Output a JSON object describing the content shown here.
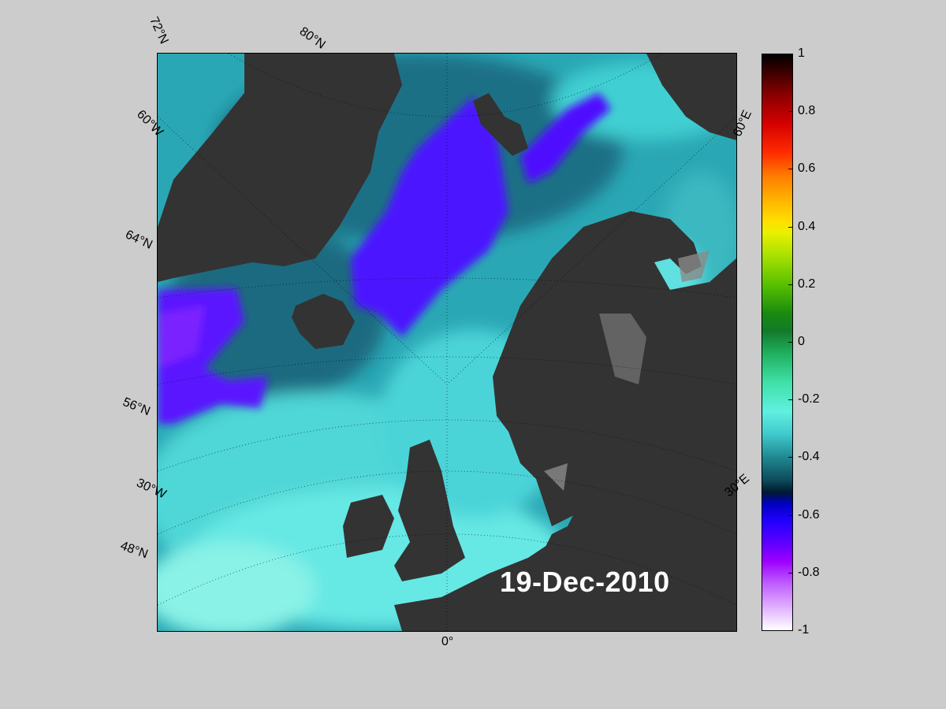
{
  "map": {
    "date": "19-Dec-2010",
    "graticule_labels": {
      "lat_72": "72°N",
      "lat_80": "80°N",
      "lon_60w": "60°W",
      "lat_64": "64°N",
      "lat_56": "56°N",
      "lon_30w": "30°W",
      "lat_48": "48°N",
      "lon_0": "0°",
      "lon_30e": "30°E",
      "lon_60e": "60°E"
    },
    "colors": {
      "land": "#333333",
      "ice": "#8a8a8a",
      "ocean_base": "#2fb8c0",
      "negative_anomaly": "#4a10ff",
      "baltic": "#2fc27a",
      "bothnia": "#2a8a3a"
    }
  },
  "colorbar": {
    "ticks": [
      "1",
      "0.8",
      "0.6",
      "0.4",
      "0.2",
      "0",
      "-0.2",
      "-0.4",
      "-0.6",
      "-0.8",
      "-1"
    ],
    "range": [
      -1,
      1
    ]
  }
}
